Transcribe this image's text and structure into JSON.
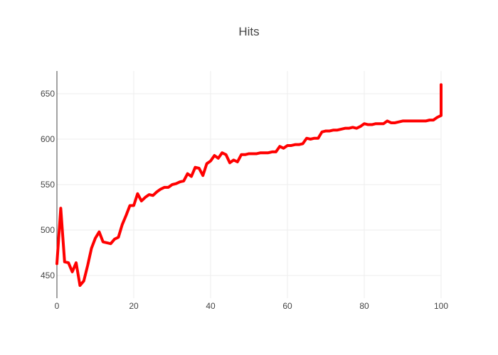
{
  "chart_data": {
    "type": "line",
    "title": "Hits",
    "xlabel": "",
    "ylabel": "",
    "xlim": [
      0,
      100
    ],
    "ylim": [
      425,
      675
    ],
    "xticks": [
      0,
      20,
      40,
      60,
      80,
      100
    ],
    "yticks": [
      450,
      500,
      550,
      600,
      650
    ],
    "grid": true,
    "line_color": "#ff0000",
    "series": [
      {
        "x": [
          0,
          1,
          2,
          3,
          4,
          5,
          6,
          7,
          8,
          9,
          10,
          11,
          12,
          13,
          14,
          15,
          16,
          17,
          18,
          19,
          20,
          21,
          22,
          23,
          24,
          25,
          26,
          27,
          28,
          29,
          30,
          31,
          32,
          33,
          34,
          35,
          36,
          37,
          38,
          39,
          40,
          41,
          42,
          43,
          44,
          45,
          46,
          47,
          48,
          49,
          50,
          51,
          52,
          53,
          54,
          55,
          56,
          57,
          58,
          59,
          60,
          61,
          62,
          63,
          64,
          65,
          66,
          67,
          68,
          69,
          70,
          71,
          72,
          73,
          74,
          75,
          76,
          77,
          78,
          79,
          80,
          81,
          82,
          83,
          84,
          85,
          86,
          87,
          88,
          89,
          90,
          91,
          92,
          93,
          94,
          95,
          96,
          97,
          98,
          99,
          100
        ],
        "y": [
          463,
          524,
          465,
          464,
          454,
          464,
          439,
          444,
          461,
          480,
          491,
          498,
          487,
          486,
          485,
          490,
          492,
          506,
          516,
          527,
          527,
          540,
          532,
          536,
          539,
          538,
          542,
          545,
          547,
          547,
          550,
          551,
          553,
          554,
          562,
          559,
          569,
          568,
          560,
          573,
          576,
          582,
          579,
          585,
          583,
          574,
          577,
          575,
          583,
          583,
          584,
          584,
          584,
          585,
          585,
          585,
          586,
          586,
          592,
          590,
          593,
          593,
          594,
          594,
          595,
          601,
          600,
          601,
          601,
          608,
          609,
          609,
          610,
          610,
          611,
          612,
          612,
          613,
          612,
          614,
          617,
          616,
          616,
          617,
          617,
          617,
          620,
          618,
          618,
          619,
          620,
          620,
          620,
          620,
          620,
          620,
          620,
          621,
          621,
          624,
          626
        ]
      }
    ],
    "end_spike": [
      626,
      648,
      660
    ]
  }
}
